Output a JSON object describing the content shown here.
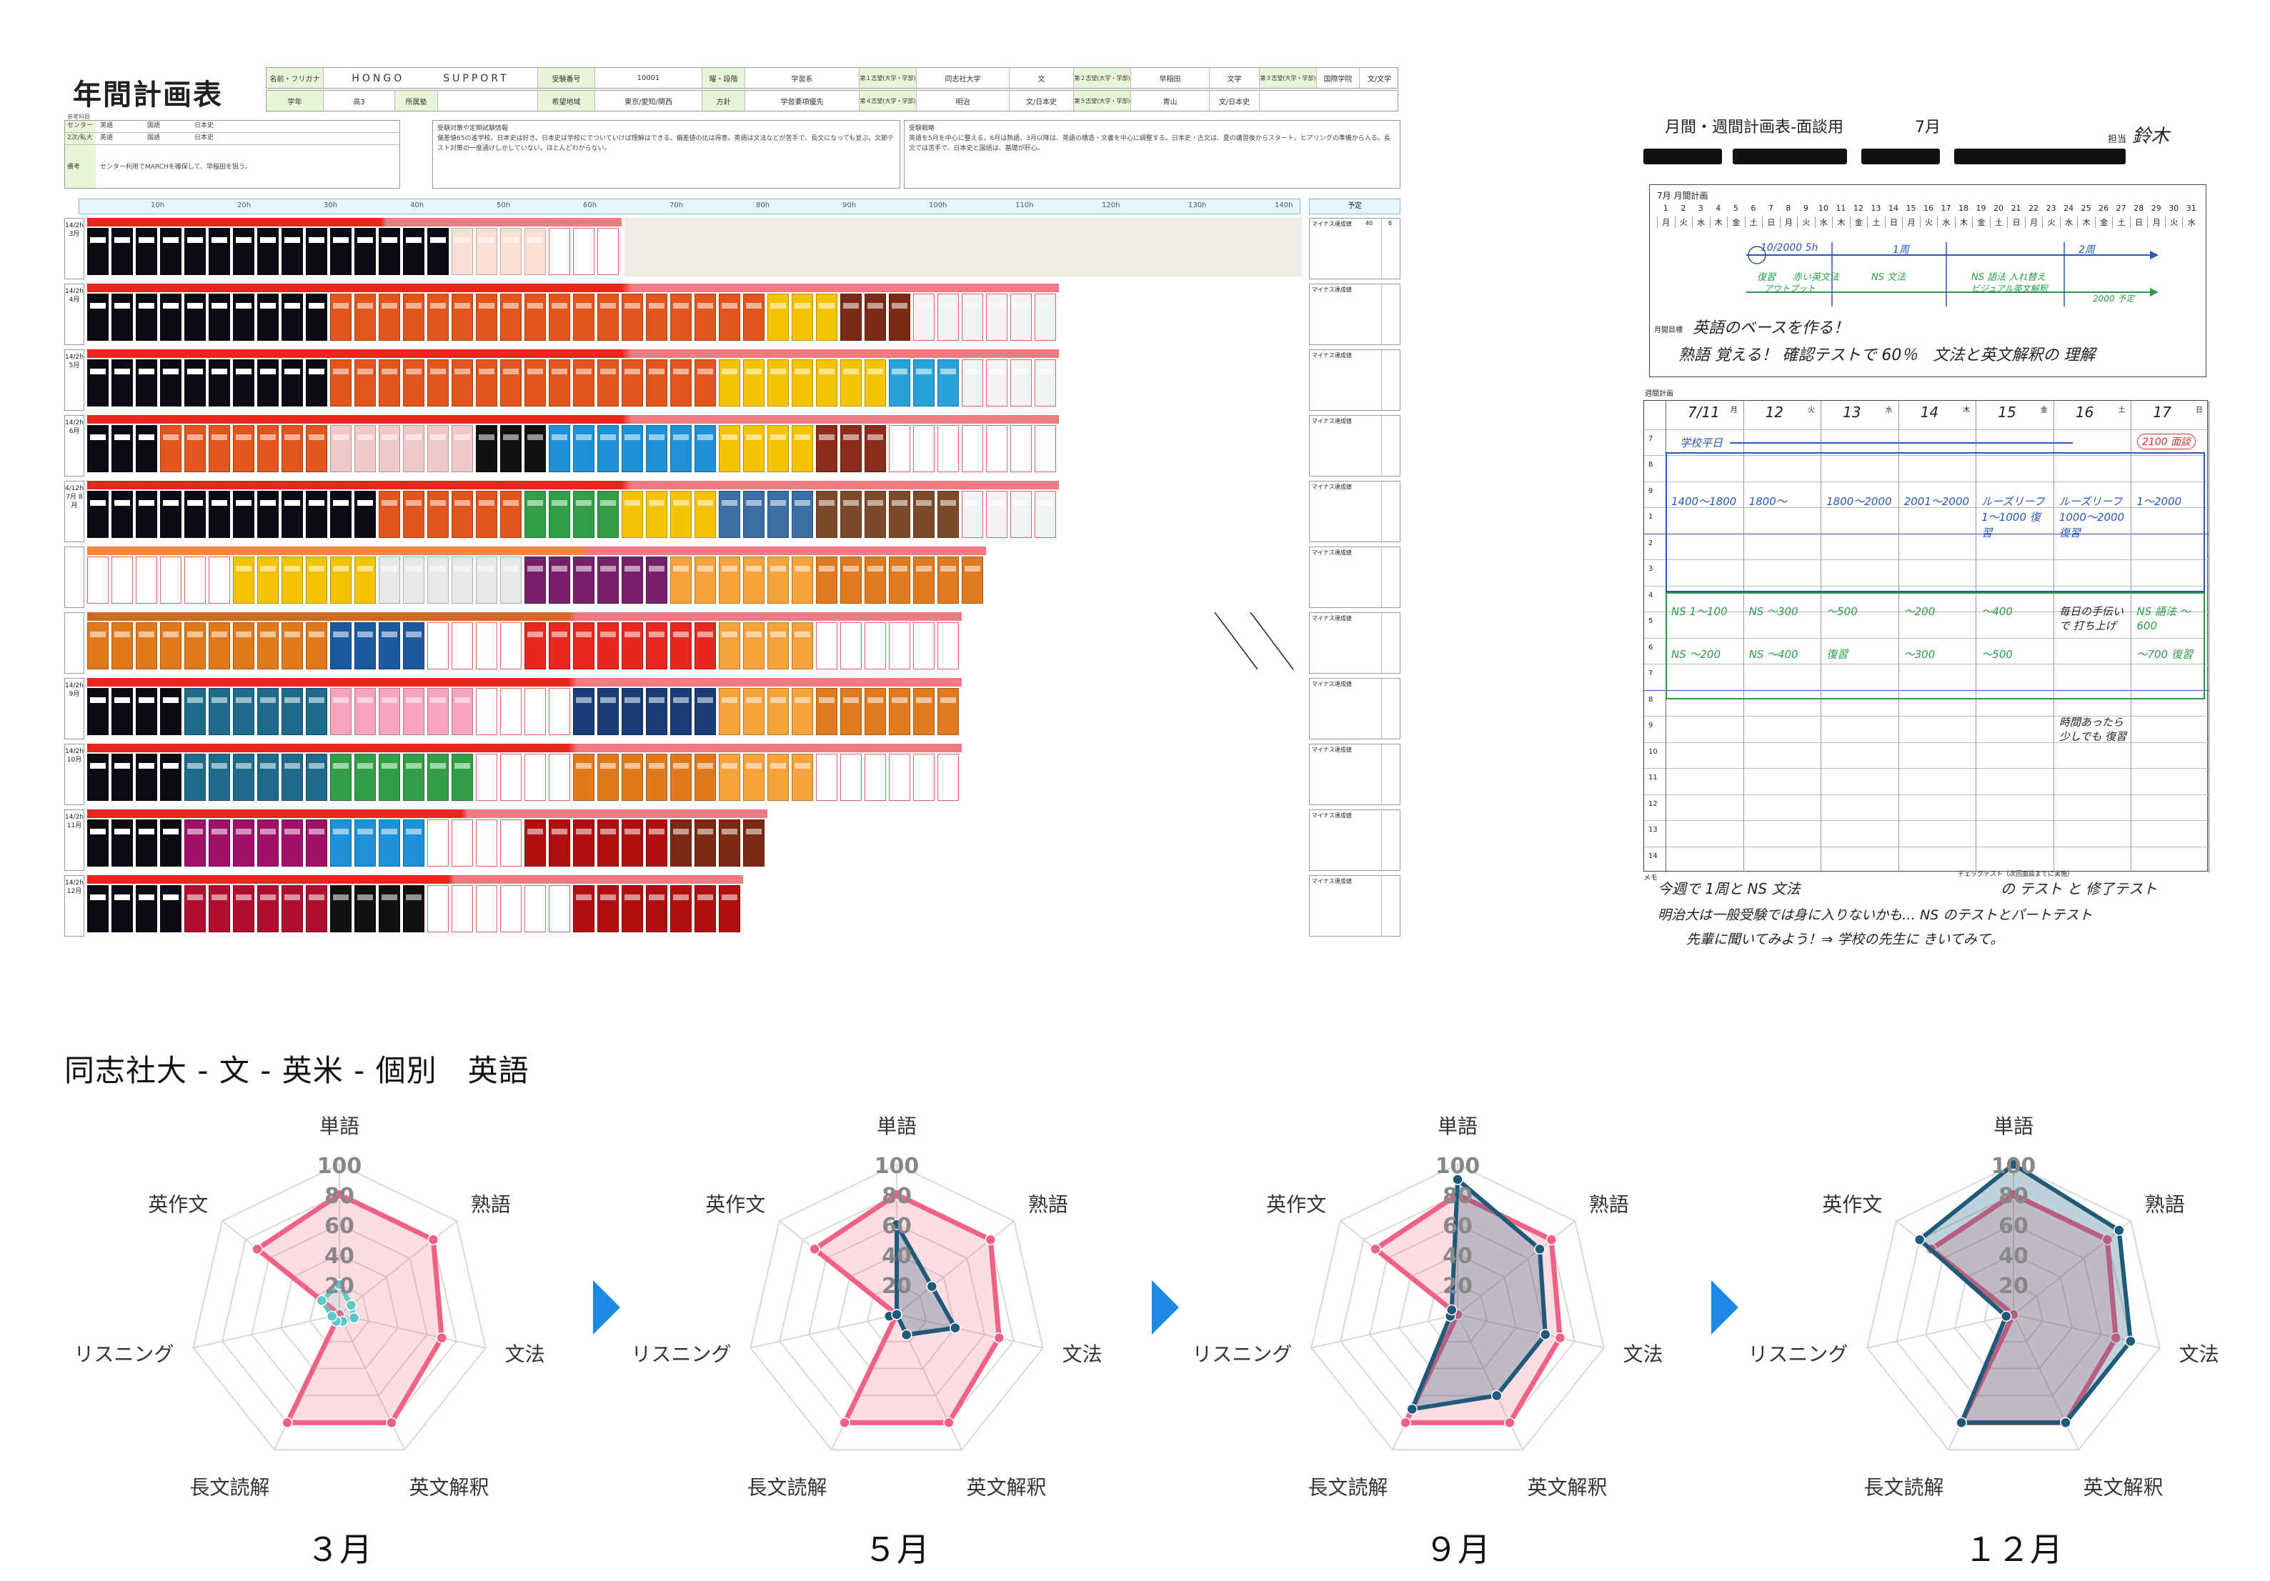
{
  "annual_sheet": {
    "title": "年間計画表",
    "header": {
      "name_label": "名前・フリガナ",
      "name_value": "HONGO　　　SUPPORT",
      "grade_label": "学年",
      "grade_value": "高3",
      "affiliation_label": "所属塾",
      "exam_no_label": "受験番号",
      "exam_no_value": "10001",
      "region_label": "希望地域",
      "region_value": "東京/愛知/関西",
      "mon_label": "曜・段階",
      "mon_value": "学習系",
      "policy_label": "方針",
      "policy_value": "学習要項優先",
      "choice1_label": "第１志望(大学・学部)",
      "choice1_value": "同志社大学",
      "choice1_dept": "文",
      "choice2_label": "第２志望(大学・学部)",
      "choice2_value": "早稲田",
      "choice2_dept": "文学",
      "choice3_label": "第３志望(大学・学部)",
      "choice3_value": "国際学院",
      "choice3_dept": "文/文学",
      "choice4_label": "第４志望(大学・学部)",
      "choice4_value": "明治",
      "choice4_dept": "文/日本史",
      "choice5_label": "第５志望(大学・学部)",
      "choice5_value": "青山",
      "choice5_dept": "文/日本史"
    },
    "memo": {
      "small_label": "参考科目",
      "rows": [
        {
          "label": "センター",
          "c1": "英語",
          "c2": "国語",
          "c3": "日本史"
        },
        {
          "label": "2次/私大",
          "c1": "英語",
          "c2": "国語",
          "c3": "日本史"
        },
        {
          "label": "備考",
          "c1": "センター利用でMARCHを確保して、早稲田を狙う。"
        }
      ],
      "box2_title": "受験対策や定期試験情報",
      "box2_text": "偏差値65の進学校。日本史は好き。日本史は学校にでついていけば理解はできる。偏差値の比は得意。英語は文法などが苦手で、長文になっても並ぶ。文節テスト対策の一度通けしかしていない。ほとんどわからない。",
      "box3_title": "受験戦略",
      "box3_text": "英語を5月を中心に整える。6月は熟語、3月以降は、英語の構造・文書を中心に調整する。日本史・古文は、夏の講習後からスタート。ヒアリングの準備から入る。長文では苦手で、日本史と国語は、基礎が肝心。"
    },
    "hours": [
      "10h",
      "20h",
      "30h",
      "40h",
      "50h",
      "60h",
      "70h",
      "80h",
      "90h",
      "100h",
      "110h",
      "120h",
      "130h",
      "140h"
    ],
    "yotei_label": "予定",
    "month_rows": [
      {
        "label": "14/2h 3月",
        "side": "マイナス達成値",
        "side_val": "40",
        "side_val2": "6"
      },
      {
        "label": "14/2h 4月",
        "side": "マイナス達成値"
      },
      {
        "label": "14/2h 5月",
        "side": "マイナス達成値"
      },
      {
        "label": "14/2h 6月",
        "side": "マイナス達成値"
      },
      {
        "label": "4/12h 7月 8月",
        "side": "マイナス達成値"
      },
      {
        "label": "",
        "side": "マイナス達成値"
      },
      {
        "label": "",
        "side": "マイナス達成値"
      },
      {
        "label": "14/2h 9月",
        "side": "マイナス達成値"
      },
      {
        "label": "14/2h 10月",
        "side": "マイナス達成値"
      },
      {
        "label": "14/2h 11月",
        "side": "マイナス達成値"
      },
      {
        "label": "14/2h 12月",
        "side": "マイナス達成値"
      }
    ],
    "note_row3": "過去問対策",
    "band_text_sample": "英語長文一問一答"
  },
  "weekly_sheet": {
    "title": "月間・週間計画表-面談用",
    "month": "7月",
    "tantou": "担当",
    "tantou_sign": "鈴木",
    "month_plan_label": "7月 月間計画",
    "month_days": [
      "1",
      "2",
      "3",
      "4",
      "5",
      "6",
      "7",
      "8",
      "9",
      "10",
      "11",
      "12",
      "13",
      "14",
      "15",
      "16",
      "17",
      "18",
      "19",
      "20",
      "21",
      "22",
      "23",
      "24",
      "25",
      "26",
      "27",
      "28",
      "29",
      "30",
      "31"
    ],
    "month_weekdays": [
      "月",
      "火",
      "水",
      "木",
      "金",
      "土",
      "日",
      "月",
      "火",
      "水",
      "木",
      "金",
      "土",
      "日",
      "月",
      "火",
      "水",
      "木",
      "金",
      "土",
      "日",
      "月",
      "火",
      "水",
      "木",
      "金",
      "土",
      "日",
      "月",
      "火",
      "水"
    ],
    "month_notes": [
      "10/2000 5h",
      "1周",
      "2周",
      "復習",
      "赤い英文法",
      "アウトプット",
      "NS 文法",
      "NS 語法 入れ替え",
      "ビジュアル英文解釈",
      "2000 予定"
    ],
    "goal_label": "月間目標",
    "goal_text1": "英語のベースを作る！",
    "goal_text2": "熟語 覚える！ 確認テストで 60％　文法と英文解釈の 理解",
    "week_plan_label": "週間計画",
    "week_days": [
      {
        "d": "7/11",
        "w": "月"
      },
      {
        "d": "12",
        "w": "火"
      },
      {
        "d": "13",
        "w": "水"
      },
      {
        "d": "14",
        "w": "木"
      },
      {
        "d": "15",
        "w": "金"
      },
      {
        "d": "16",
        "w": "土"
      },
      {
        "d": "17",
        "w": "日"
      }
    ],
    "week_top_note": "学校平日",
    "week_red_note": "2100 面談",
    "time_rows": [
      "7",
      "8",
      "9",
      "1",
      "2",
      "3",
      "4",
      "5",
      "6",
      "7",
      "8",
      "9",
      "10",
      "11",
      "12",
      "13",
      "14"
    ],
    "cells_blue": [
      "1400〜1800",
      "1800〜",
      "1800〜2000",
      "2001〜2000",
      "ルーズリーフ 1〜1000 復習",
      "ルーズリーフ 1000〜2000 復習",
      "1〜2000"
    ],
    "cells_green": [
      "NS 1〜100",
      "NS 〜300",
      "〜500",
      "〜200",
      "〜400",
      "毎日の手伝いで 打ち上げ",
      "NS 語法 〜600"
    ],
    "cells_green2": [
      "NS 〜200",
      "NS 〜400",
      "復習",
      "〜300",
      "〜500",
      "時間あったら 少しでも 復習",
      "〜700 復習"
    ],
    "memo_label": "メモ",
    "memo_text1": "今週で 1周と NS 文法",
    "memo_text2": "明治大は一般受験では身に入りないかも… NS のテストとパートテスト",
    "memo_text3": "先輩に聞いてみよう！⇒ 学校の先生に きいてみて。",
    "check_label": "チェックテスト（次回面談までに実施）",
    "check_text": "の テスト と 修了テスト"
  },
  "radar_section": {
    "heading": "同志社大 - 文 - 英米 - 個別　英語"
  },
  "chart_data": [
    {
      "type": "radar",
      "title": "３月",
      "axes": [
        "単語",
        "熟語",
        "文法",
        "英文解釈",
        "長文読解",
        "リスニング",
        "英作文"
      ],
      "rlim": [
        0,
        100
      ],
      "ticks": [
        20,
        40,
        60,
        80,
        100
      ],
      "series": [
        {
          "color": "#f06284",
          "values": [
            80,
            80,
            70,
            80,
            80,
            0,
            70
          ]
        },
        {
          "color": "#5ec7c7",
          "values": [
            20,
            10,
            10,
            5,
            5,
            5,
            15
          ]
        }
      ]
    },
    {
      "type": "radar",
      "title": "５月",
      "axes": [
        "単語",
        "熟語",
        "文法",
        "英文解釈",
        "長文読解",
        "リスニング",
        "英作文"
      ],
      "rlim": [
        0,
        100
      ],
      "ticks": [
        20,
        40,
        60,
        80,
        100
      ],
      "series": [
        {
          "color": "#f06284",
          "values": [
            80,
            80,
            70,
            80,
            80,
            0,
            70
          ]
        },
        {
          "color": "#1f5a7a",
          "values": [
            60,
            30,
            40,
            15,
            0,
            5,
            0
          ]
        }
      ]
    },
    {
      "type": "radar",
      "title": "９月",
      "axes": [
        "単語",
        "熟語",
        "文法",
        "英文解釈",
        "長文読解",
        "リスニング",
        "英作文"
      ],
      "rlim": [
        0,
        100
      ],
      "ticks": [
        20,
        40,
        60,
        80,
        100
      ],
      "series": [
        {
          "color": "#f06284",
          "values": [
            80,
            80,
            70,
            80,
            80,
            0,
            70
          ]
        },
        {
          "color": "#1f5a7a",
          "values": [
            90,
            70,
            60,
            60,
            70,
            5,
            5
          ]
        }
      ]
    },
    {
      "type": "radar",
      "title": "１２月",
      "axes": [
        "単語",
        "熟語",
        "文法",
        "英文解釈",
        "長文読解",
        "リスニング",
        "英作文"
      ],
      "rlim": [
        0,
        100
      ],
      "ticks": [
        20,
        40,
        60,
        80,
        100
      ],
      "series": [
        {
          "color": "#f06284",
          "values": [
            80,
            80,
            70,
            80,
            80,
            0,
            70
          ]
        },
        {
          "color": "#1f5a7a",
          "values": [
            100,
            90,
            80,
            80,
            80,
            5,
            80
          ]
        }
      ]
    }
  ],
  "colors": {
    "pink": "#f06284",
    "pink_fill": "#f7c2cf",
    "navy": "#1f5a7a",
    "teal": "#5ec7c7",
    "arrow": "#1e88e5"
  }
}
